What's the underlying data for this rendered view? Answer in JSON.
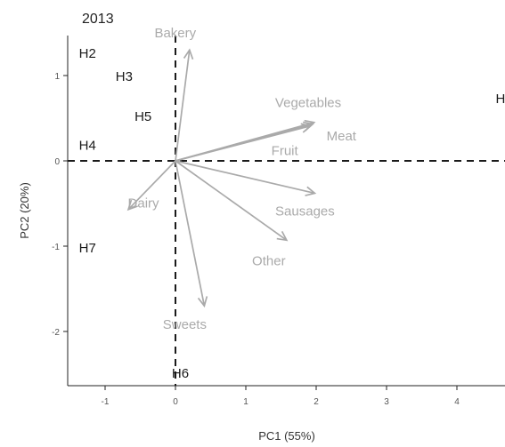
{
  "chart_data": {
    "type": "scatter",
    "title": "2013",
    "xlabel": "PC1 (55%)",
    "ylabel": "PC2 (20%)",
    "xlim": [
      -1.5,
      4.65
    ],
    "ylim": [
      -2.65,
      1.45
    ],
    "x_ticks": [
      -1,
      0,
      1,
      2,
      3,
      4
    ],
    "y_ticks": [
      -2,
      -1,
      0,
      1
    ],
    "x_tick_labels": [
      "-1",
      "0",
      "1",
      "2",
      "3",
      "4"
    ],
    "y_tick_labels": [
      "-2",
      "-1",
      "0",
      "1"
    ],
    "reference_lines": {
      "x": 0,
      "y": 0,
      "style": "dashed"
    },
    "grid": false,
    "observations": [
      {
        "label": "H2",
        "x": -1.25,
        "y": 1.25
      },
      {
        "label": "H3",
        "x": -0.73,
        "y": 0.98
      },
      {
        "label": "H5",
        "x": -0.46,
        "y": 0.51
      },
      {
        "label": "H4",
        "x": -1.25,
        "y": 0.17
      },
      {
        "label": "H7",
        "x": -1.25,
        "y": -1.03
      },
      {
        "label": "H6",
        "x": 0.07,
        "y": -2.5
      },
      {
        "label": "H",
        "x": 4.62,
        "y": 0.72
      }
    ],
    "variables": [
      {
        "label": "Bakery",
        "x": 0.2,
        "y": 1.3
      },
      {
        "label": "Vegetables",
        "x": 1.95,
        "y": 0.43
      },
      {
        "label": "Meat",
        "x": 1.97,
        "y": 0.45
      },
      {
        "label": "Fruit",
        "x": 1.92,
        "y": 0.41
      },
      {
        "label": "Sausages",
        "x": 1.98,
        "y": -0.38
      },
      {
        "label": "Other",
        "x": 1.58,
        "y": -0.93
      },
      {
        "label": "Dairy",
        "x": -0.67,
        "y": -0.57
      },
      {
        "label": "Sweets",
        "x": 0.41,
        "y": -1.7
      }
    ],
    "colors": {
      "observations": "#1a1a1a",
      "variables": "#aaaaaa",
      "reference_lines": "#1a1a1a"
    }
  }
}
